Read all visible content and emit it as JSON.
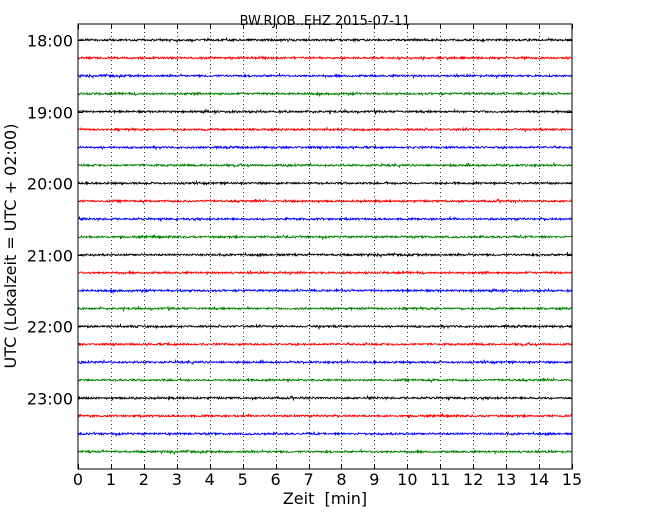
{
  "chart_data": {
    "type": "line",
    "title": "BW.RJOB..EHZ 2015-07-11",
    "xlabel": "Zeit  [min]",
    "ylabel": "UTC (Lokalzeit = UTC + 02:00)",
    "xlim": [
      0,
      15
    ],
    "x_ticks": [
      "0",
      "1",
      "2",
      "3",
      "4",
      "5",
      "6",
      "7",
      "8",
      "9",
      "10",
      "11",
      "12",
      "13",
      "14",
      "15"
    ],
    "y_ticks": [
      "18:00",
      "19:00",
      "20:00",
      "21:00",
      "22:00",
      "23:00"
    ],
    "y_tick_times": [
      "18:00",
      "19:00",
      "20:00",
      "21:00",
      "22:00",
      "23:00"
    ],
    "trace_interval_minutes": 15,
    "first_trace_start": "18:00",
    "last_trace_start": "23:45",
    "trace_colors": [
      "#000000",
      "#ff0000",
      "#0000ff",
      "#008000"
    ],
    "grid": "vertical dotted lines at each minute",
    "series": [
      {
        "start": "18:00",
        "color": "#000000"
      },
      {
        "start": "18:15",
        "color": "#ff0000"
      },
      {
        "start": "18:30",
        "color": "#0000ff"
      },
      {
        "start": "18:45",
        "color": "#008000"
      },
      {
        "start": "19:00",
        "color": "#000000"
      },
      {
        "start": "19:15",
        "color": "#ff0000"
      },
      {
        "start": "19:30",
        "color": "#0000ff"
      },
      {
        "start": "19:45",
        "color": "#008000"
      },
      {
        "start": "20:00",
        "color": "#000000"
      },
      {
        "start": "20:15",
        "color": "#ff0000"
      },
      {
        "start": "20:30",
        "color": "#0000ff"
      },
      {
        "start": "20:45",
        "color": "#008000"
      },
      {
        "start": "21:00",
        "color": "#000000"
      },
      {
        "start": "21:15",
        "color": "#ff0000"
      },
      {
        "start": "21:30",
        "color": "#0000ff"
      },
      {
        "start": "21:45",
        "color": "#008000"
      },
      {
        "start": "22:00",
        "color": "#000000"
      },
      {
        "start": "22:15",
        "color": "#ff0000"
      },
      {
        "start": "22:30",
        "color": "#0000ff"
      },
      {
        "start": "22:45",
        "color": "#008000"
      },
      {
        "start": "23:00",
        "color": "#000000"
      },
      {
        "start": "23:15",
        "color": "#ff0000"
      },
      {
        "start": "23:30",
        "color": "#0000ff"
      },
      {
        "start": "23:45",
        "color": "#008000"
      }
    ]
  }
}
